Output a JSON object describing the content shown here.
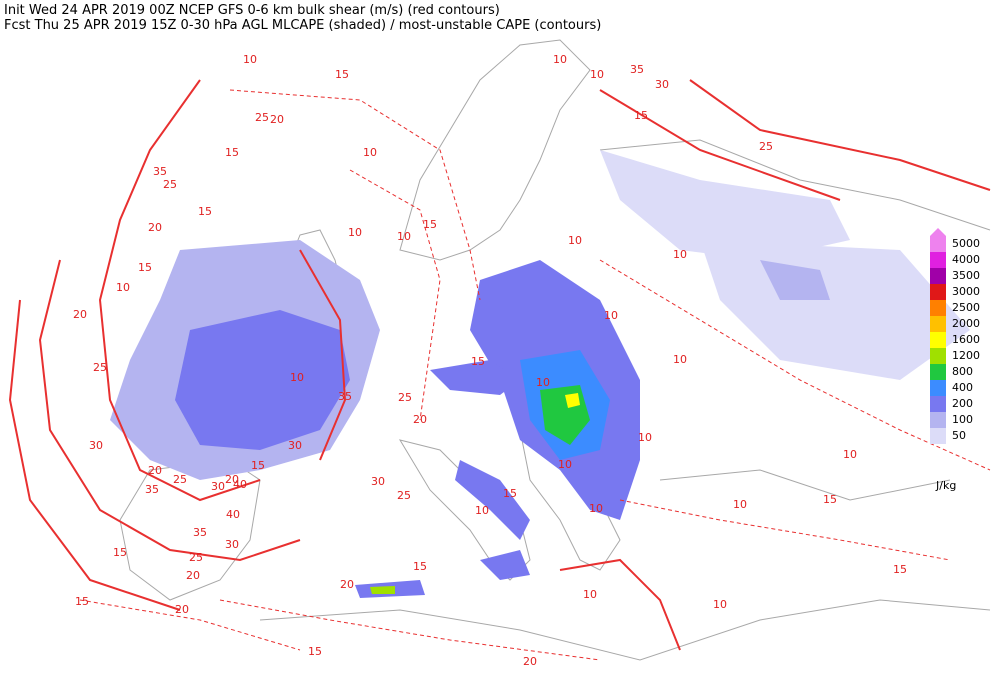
{
  "header": {
    "line1": "Init  Wed 24 APR 2019 00Z  NCEP GFS 0-6 km bulk shear (m/s) (red contours)",
    "line2": "Fcst Thu 25 APR 2019 15Z  0-30 hPa AGL MLCAPE (shaded) / most-unstable CAPE (contours)"
  },
  "legend": {
    "unit": "J/kg",
    "levels": [
      {
        "value": 5000,
        "color": "#ee82ee"
      },
      {
        "value": 4000,
        "color": "#e020e0"
      },
      {
        "value": 3500,
        "color": "#a000a8"
      },
      {
        "value": 3000,
        "color": "#e01818"
      },
      {
        "value": 2500,
        "color": "#ff8000"
      },
      {
        "value": 2000,
        "color": "#ffc000"
      },
      {
        "value": 1600,
        "color": "#ffff00"
      },
      {
        "value": 1200,
        "color": "#a0e000"
      },
      {
        "value": 800,
        "color": "#20c840"
      },
      {
        "value": 400,
        "color": "#3c8cff"
      },
      {
        "value": 200,
        "color": "#7878f0"
      },
      {
        "value": 100,
        "color": "#b4b4f0"
      },
      {
        "value": 50,
        "color": "#dcdcf8"
      }
    ]
  },
  "contour_labels": [
    10,
    15,
    25,
    20,
    15,
    35,
    25,
    15,
    20,
    15,
    10,
    20,
    25,
    30,
    20,
    25,
    35,
    20,
    30,
    40,
    40,
    35,
    30,
    15,
    25,
    20,
    15,
    20,
    15,
    10,
    35,
    30,
    15,
    30,
    25,
    20,
    25,
    10,
    10,
    10,
    15,
    10,
    15,
    20,
    15,
    10,
    10,
    25,
    35,
    30,
    15,
    10,
    10,
    15,
    10,
    15,
    10,
    10,
    20,
    10,
    10,
    10,
    15,
    10,
    10,
    10,
    10
  ]
}
